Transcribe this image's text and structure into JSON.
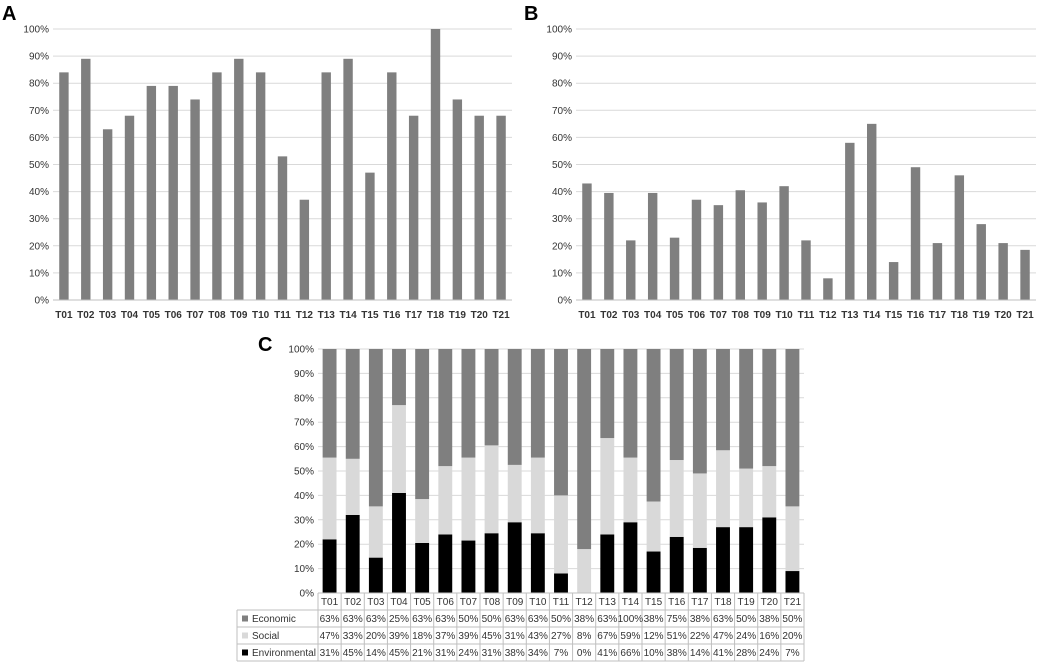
{
  "chart_data": [
    {
      "panel": "A",
      "type": "bar",
      "title": "",
      "xlabel": "",
      "ylabel": "",
      "ylim": [
        0,
        100
      ],
      "yticks": [
        "0%",
        "10%",
        "20%",
        "30%",
        "40%",
        "50%",
        "60%",
        "70%",
        "80%",
        "90%",
        "100%"
      ],
      "categories": [
        "T01",
        "T02",
        "T03",
        "T04",
        "T05",
        "T06",
        "T07",
        "T08",
        "T09",
        "T10",
        "T11",
        "T12",
        "T13",
        "T14",
        "T15",
        "T16",
        "T17",
        "T18",
        "T19",
        "T20",
        "T21"
      ],
      "values": [
        84,
        89,
        63,
        68,
        79,
        79,
        74,
        84,
        89,
        84,
        53,
        37,
        84,
        89,
        47,
        84,
        68,
        100,
        74,
        68,
        68
      ],
      "color": "#7f7f7f",
      "grid": true
    },
    {
      "panel": "B",
      "type": "bar",
      "title": "",
      "xlabel": "",
      "ylabel": "",
      "ylim": [
        0,
        100
      ],
      "yticks": [
        "0%",
        "10%",
        "20%",
        "30%",
        "40%",
        "50%",
        "60%",
        "70%",
        "80%",
        "90%",
        "100%"
      ],
      "categories": [
        "T01",
        "T02",
        "T03",
        "T04",
        "T05",
        "T06",
        "T07",
        "T08",
        "T09",
        "T10",
        "T11",
        "T12",
        "T13",
        "T14",
        "T15",
        "T16",
        "T17",
        "T18",
        "T19",
        "T20",
        "T21"
      ],
      "values": [
        43,
        39.5,
        22,
        39.5,
        23,
        37,
        35,
        40.5,
        36,
        42,
        22,
        8,
        58,
        65,
        14,
        49,
        21,
        46,
        28,
        21,
        18.5
      ],
      "color": "#7f7f7f",
      "grid": true
    },
    {
      "panel": "C",
      "type": "bar",
      "stacked": true,
      "normalized": true,
      "title": "",
      "xlabel": "",
      "ylabel": "",
      "ylim": [
        0,
        100
      ],
      "yticks": [
        "0%",
        "10%",
        "20%",
        "30%",
        "40%",
        "50%",
        "60%",
        "70%",
        "80%",
        "90%",
        "100%"
      ],
      "categories": [
        "T01",
        "T02",
        "T03",
        "T04",
        "T05",
        "T06",
        "T07",
        "T08",
        "T09",
        "T10",
        "T11",
        "T12",
        "T13",
        "T14",
        "T15",
        "T16",
        "T17",
        "T18",
        "T19",
        "T20",
        "T21"
      ],
      "series": [
        {
          "name": "Environmental",
          "color": "#000000",
          "values": [
            22,
            32,
            14.5,
            41,
            20.5,
            24,
            21.5,
            24.5,
            29,
            24.5,
            8,
            0,
            24,
            29,
            17,
            23,
            18.5,
            27,
            27,
            31,
            9
          ]
        },
        {
          "name": "Social",
          "color": "#d9d9d9",
          "values": [
            33.5,
            23,
            21,
            36,
            18,
            28,
            34,
            36,
            23.5,
            31,
            32,
            18,
            39.5,
            26.5,
            20.5,
            31.5,
            30.5,
            31.5,
            24,
            21,
            26.5
          ]
        },
        {
          "name": "Economic",
          "color": "#7f7f7f",
          "values": [
            44.5,
            45,
            64.5,
            23,
            61.5,
            48,
            44.5,
            39.5,
            47.5,
            44.5,
            60,
            82,
            36.5,
            44.5,
            62.5,
            45.5,
            51,
            41.5,
            49,
            48,
            64.5
          ]
        }
      ],
      "table": [
        {
          "name": "Economic",
          "color": "#7f7f7f",
          "cells": [
            "63%",
            "63%",
            "63%",
            "25%",
            "63%",
            "63%",
            "50%",
            "50%",
            "63%",
            "63%",
            "50%",
            "38%",
            "63%",
            "100%",
            "38%",
            "75%",
            "38%",
            "63%",
            "50%",
            "38%",
            "50%"
          ]
        },
        {
          "name": "Social",
          "color": "#d9d9d9",
          "cells": [
            "47%",
            "33%",
            "20%",
            "39%",
            "18%",
            "37%",
            "39%",
            "45%",
            "31%",
            "43%",
            "27%",
            "8%",
            "67%",
            "59%",
            "12%",
            "51%",
            "22%",
            "47%",
            "24%",
            "16%",
            "20%"
          ]
        },
        {
          "name": "Environmental",
          "color": "#000000",
          "cells": [
            "31%",
            "45%",
            "14%",
            "45%",
            "21%",
            "31%",
            "24%",
            "31%",
            "38%",
            "34%",
            "7%",
            "0%",
            "41%",
            "66%",
            "10%",
            "38%",
            "14%",
            "41%",
            "28%",
            "24%",
            "7%"
          ]
        }
      ],
      "grid": true
    }
  ]
}
